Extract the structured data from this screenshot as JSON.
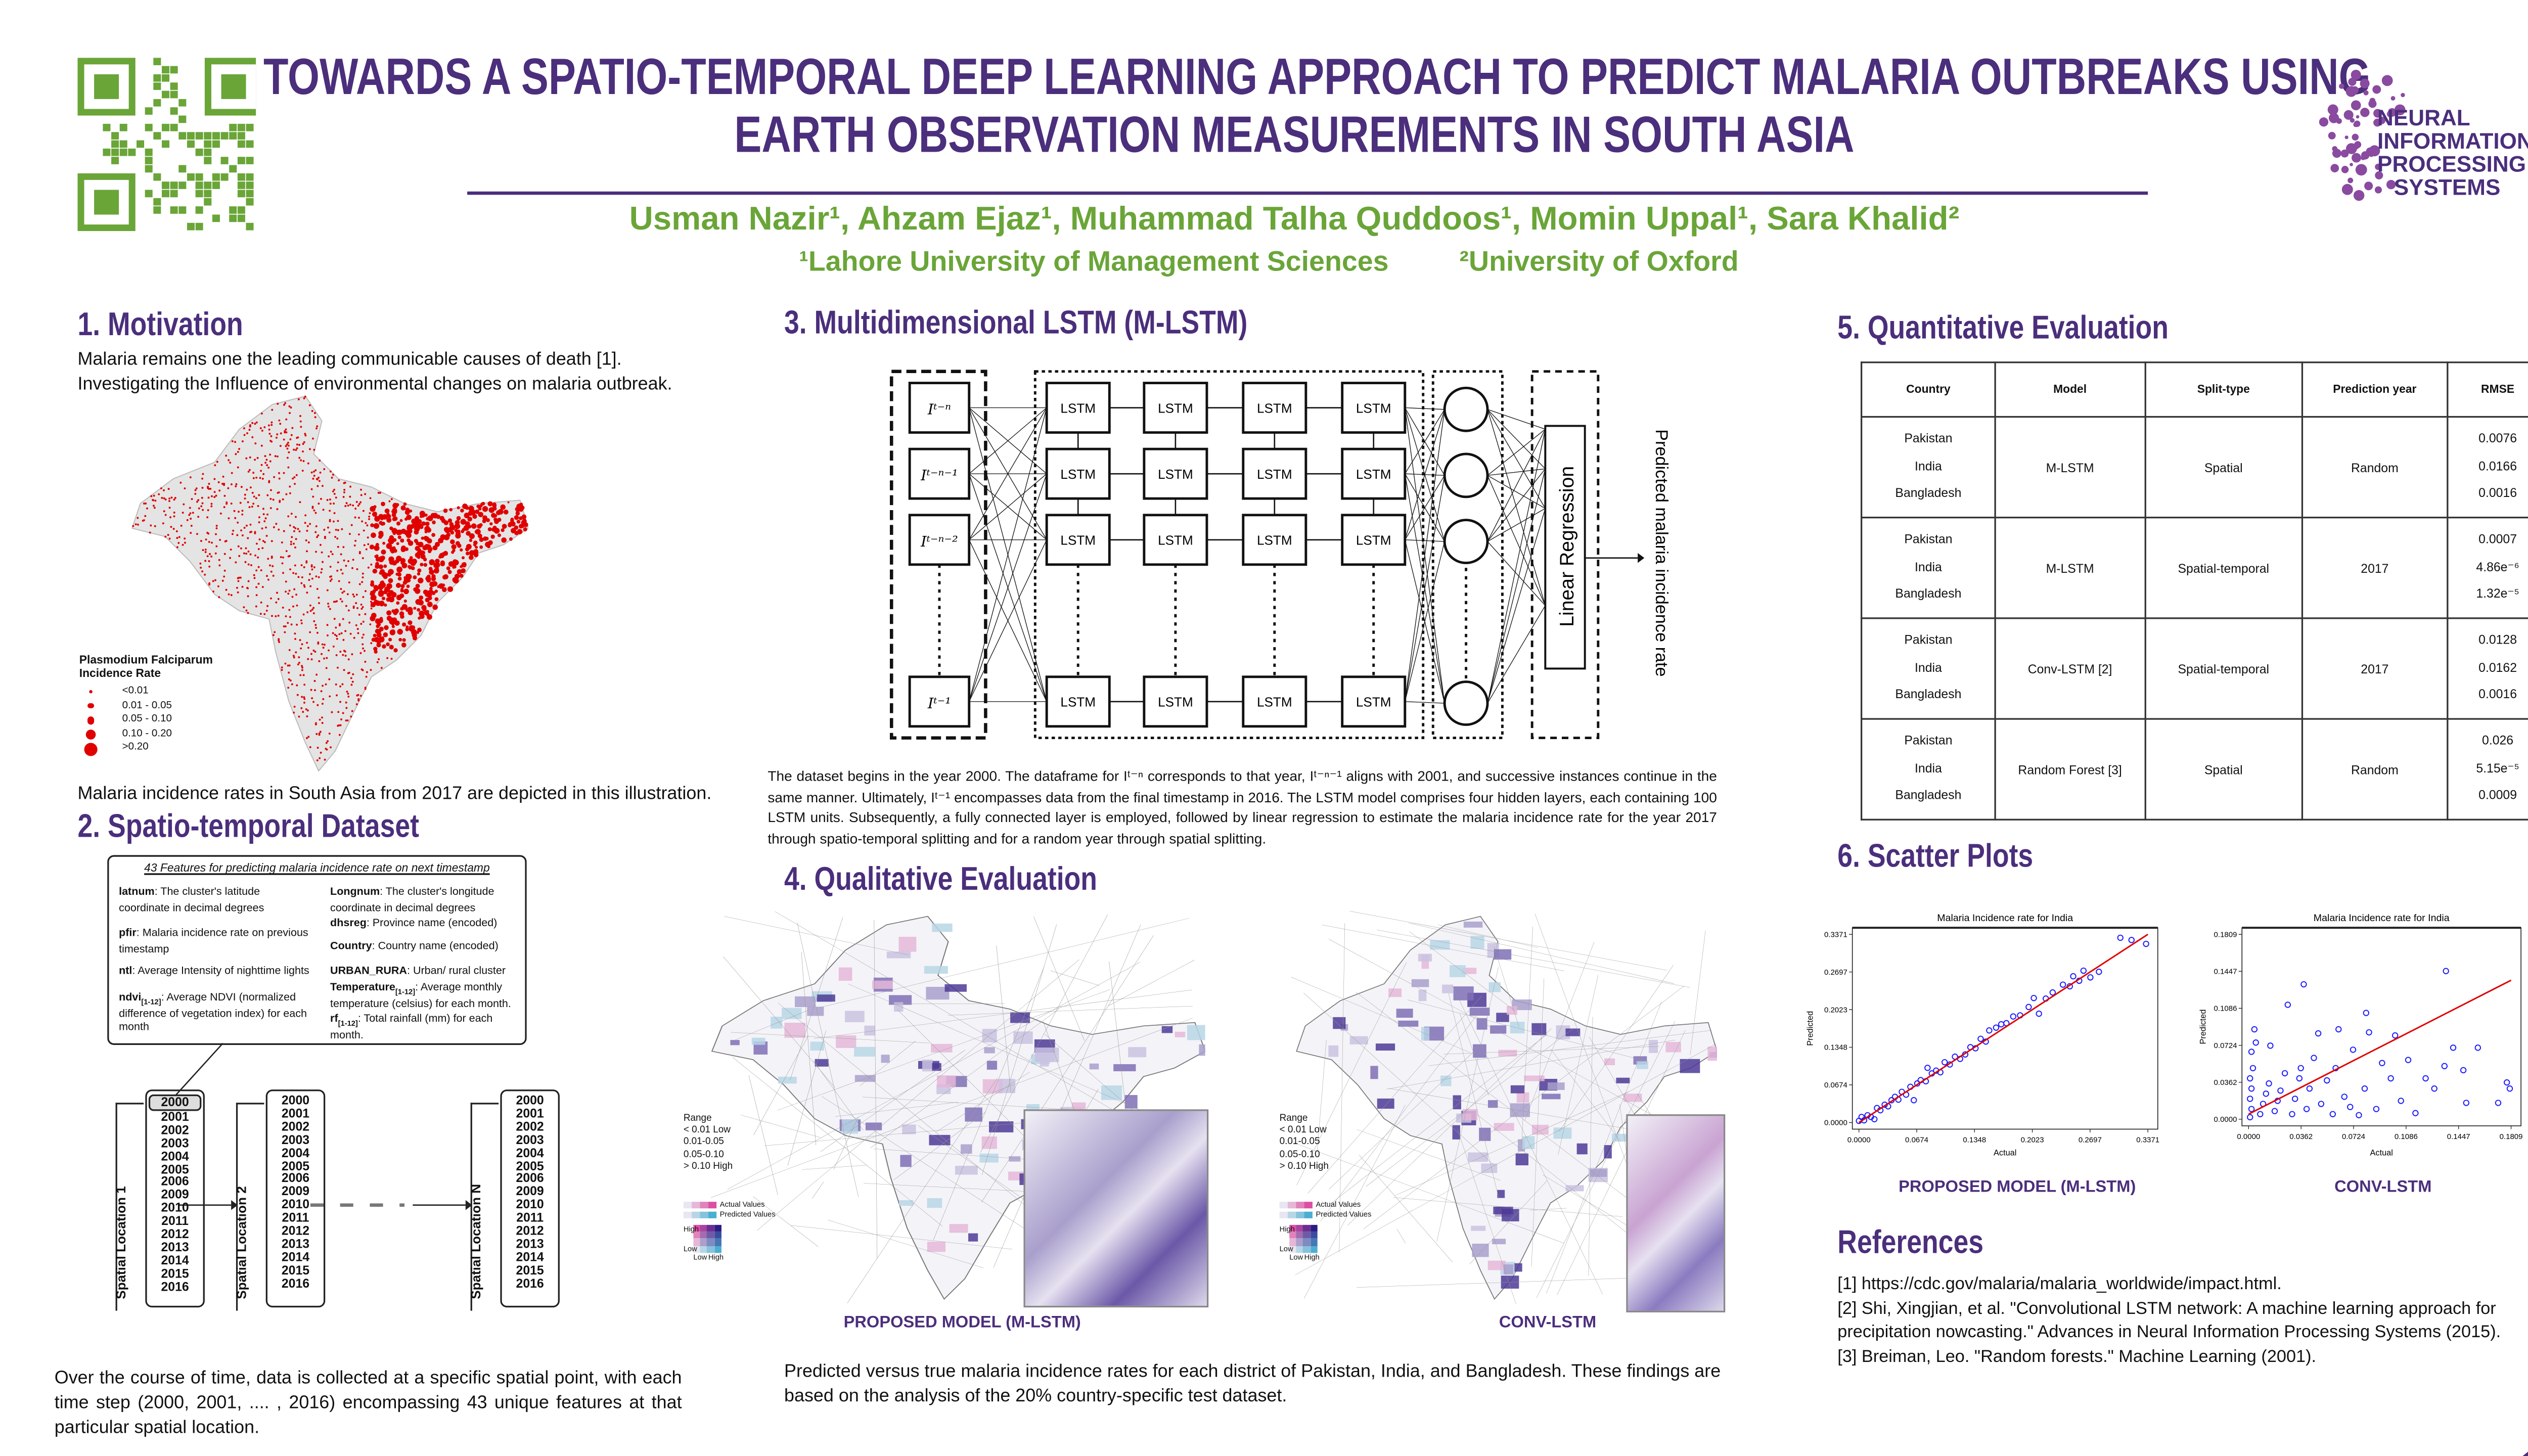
{
  "header": {
    "title_line1": "TOWARDS A SPATIO-TEMPORAL DEEP LEARNING APPROACH TO PREDICT MALARIA OUTBREAKS USING",
    "title_line2": "EARTH OBSERVATION MEASUREMENTS IN SOUTH ASIA",
    "authors": "Usman Nazir¹, Ahzam Ejaz¹, Muhammad Talha Quddoos¹, Momin Uppal¹, Sara Khalid²",
    "affiliation1": "¹Lahore University of Management Sciences",
    "affiliation2": "²University of Oxford",
    "logo_text": [
      "NEURAL",
      "INFORMATION",
      "PROCESSING",
      "SYSTEMS"
    ]
  },
  "colors": {
    "primary": "#4b2e7c",
    "accent": "#6aa538",
    "incidence": "#e00000"
  },
  "motivation": {
    "heading": "1. Motivation",
    "line1": "Malaria remains one the leading communicable causes of death [1].",
    "line2": "Investigating the Influence of environmental changes on malaria outbreak.",
    "legend_title1": "Plasmodium Falciparum",
    "legend_title2": "Incidence Rate",
    "legend_items": [
      "<0.01",
      "0.01 - 0.05",
      "0.05 - 0.10",
      "0.10 - 0.20",
      ">0.20"
    ],
    "caption": "Malaria incidence rates in South Asia from 2017 are depicted in this illustration."
  },
  "dataset": {
    "heading": "2. Spatio-temporal Dataset",
    "features_title": "43 Features for predicting malaria incidence rate on next timestamp",
    "features_left": [
      {
        "key": "latnum",
        "sub": "",
        "desc": ": The cluster's latitude coordinate in decimal degrees"
      },
      {
        "key": "pfir",
        "sub": "",
        "desc": ": Malaria incidence rate on previous timestamp"
      },
      {
        "key": "ntl",
        "sub": "",
        "desc": ": Average Intensity of nighttime lights"
      },
      {
        "key": "ndvi",
        "sub": "[1-12]",
        "desc": ": Average NDVI (normalized difference of vegetation index) for each month"
      }
    ],
    "features_right": [
      {
        "key": "Longnum",
        "sub": "",
        "desc": ": The cluster's longitude coordinate in decimal degrees"
      },
      {
        "key": "dhsreg",
        "sub": "",
        "desc": ": Province name (encoded)"
      },
      {
        "key": "Country",
        "sub": "",
        "desc": ": Country name (encoded)"
      },
      {
        "key": "URBAN_RURA",
        "sub": "",
        "desc": ": Urban/ rural cluster"
      },
      {
        "key": "Temperature",
        "sub": "[1-12]",
        "desc": ": Average monthly temperature (celsius) for each month."
      },
      {
        "key": "rf",
        "sub": "[1-12]",
        "desc": ": Total rainfall (mm) for each month."
      }
    ],
    "columns": [
      {
        "label": "Spatial Location 1",
        "years": [
          "2000",
          "2001",
          "2002",
          "2003",
          "2004",
          "2005",
          "2006",
          "2009",
          "2010",
          "2011",
          "2012",
          "2013",
          "2014",
          "2015",
          "2016"
        ]
      },
      {
        "label": "Spatial Location 2",
        "years": [
          "2000",
          "2001",
          "2002",
          "2003",
          "2004",
          "2005",
          "2006",
          "2009",
          "2010",
          "2011",
          "2012",
          "2013",
          "2014",
          "2015",
          "2016"
        ]
      },
      {
        "label": "Spatial Location N",
        "years": [
          "2000",
          "2001",
          "2002",
          "2003",
          "2004",
          "2005",
          "2006",
          "2009",
          "2010",
          "2011",
          "2012",
          "2013",
          "2014",
          "2015",
          "2016"
        ]
      }
    ],
    "paragraph": "Over the course of time, data is collected at a specific spatial point, with each time step (2000, 2001, .... , 2016) encompassing 43 unique features at that particular spatial location."
  },
  "mlstm": {
    "heading": "3. Multidimensional LSTM (M-LSTM)",
    "inputs": [
      "Iᵗ⁻ⁿ",
      "Iᵗ⁻ⁿ⁻¹",
      "Iᵗ⁻ⁿ⁻²",
      "Iᵗ⁻¹"
    ],
    "lstm_label": "LSTM",
    "linear_regression": "Linear Regression",
    "output_label": "Predicted malaria incidence rate",
    "paragraph": "The dataset begins in the year 2000. The dataframe for Iᵗ⁻ⁿ corresponds to that year, Iᵗ⁻ⁿ⁻¹ aligns with 2001, and successive instances continue in the same manner. Ultimately, Iᵗ⁻¹ encompasses data from the final timestamp in 2016. The LSTM model comprises four hidden layers, each containing 100 LSTM units. Subsequently, a fully connected layer is employed, followed by linear regression to estimate the malaria incidence rate for the year 2017 through spatio-temporal splitting and for a random year through spatial splitting."
  },
  "qualitative": {
    "heading": "4. Qualitative Evaluation",
    "range_title": "Range",
    "ranges": [
      "< 0.01  Low",
      "0.01-0.05",
      "0.05-0.10",
      "> 0.10  High"
    ],
    "actual_label": "Actual Values",
    "predicted_label": "Predicted Values",
    "high": "High",
    "low": "Low",
    "caption_left": "PROPOSED MODEL (M-LSTM)",
    "caption_right": "CONV-LSTM",
    "paragraph": "Predicted versus true malaria incidence rates for each district of Pakistan, India, and Bangladesh. These findings are based on the analysis of the 20% country-specific test dataset."
  },
  "quantitative": {
    "heading": "5. Quantitative Evaluation",
    "headers": [
      "Country",
      "Model",
      "Split-type",
      "Prediction year",
      "RMSE"
    ],
    "rows": [
      {
        "countries": [
          "Pakistan",
          "India",
          "Bangladesh"
        ],
        "model": "M-LSTM",
        "split": "Spatial",
        "year": "Random",
        "rmse": [
          "0.0076",
          "0.0166",
          "0.0016"
        ]
      },
      {
        "countries": [
          "Pakistan",
          "India",
          "Bangladesh"
        ],
        "model": "M-LSTM",
        "split": "Spatial-temporal",
        "year": "2017",
        "rmse": [
          "0.0007",
          "4.86e⁻⁶",
          "1.32e⁻⁵"
        ]
      },
      {
        "countries": [
          "Pakistan",
          "India",
          "Bangladesh"
        ],
        "model": "Conv-LSTM [2]",
        "split": "Spatial-temporal",
        "year": "2017",
        "rmse": [
          "0.0128",
          "0.0162",
          "0.0016"
        ]
      },
      {
        "countries": [
          "Pakistan",
          "India",
          "Bangladesh"
        ],
        "model": "Random Forest [3]",
        "split": "Spatial",
        "year": "Random",
        "rmse": [
          "0.026",
          "5.15e⁻⁵",
          "0.0009"
        ]
      }
    ]
  },
  "scatter": {
    "heading": "6. Scatter Plots",
    "caption_left": "PROPOSED MODEL (M-LSTM)",
    "caption_right": "CONV-LSTM"
  },
  "chart_data": [
    {
      "type": "scatter",
      "title": "Malaria Incidence rate for India",
      "xlabel": "Actual",
      "ylabel": "Predicted",
      "xlim": [
        0,
        0.3371
      ],
      "ylim": [
        0,
        0.3371
      ],
      "xticks": [
        "0.0000",
        "0.0674",
        "0.1348",
        "0.2023",
        "0.2697",
        "0.3371"
      ],
      "yticks": [
        "0.0000",
        "0.0674",
        "0.1348",
        "0.2023",
        "0.2697",
        "0.3371"
      ],
      "fit_line": [
        [
          0,
          0
        ],
        [
          0.3371,
          0.3371
        ]
      ],
      "points": [
        [
          0.0,
          0.003
        ],
        [
          0.003,
          0.01
        ],
        [
          0.006,
          0.004
        ],
        [
          0.01,
          0.013
        ],
        [
          0.014,
          0.01
        ],
        [
          0.018,
          0.006
        ],
        [
          0.021,
          0.026
        ],
        [
          0.025,
          0.022
        ],
        [
          0.03,
          0.032
        ],
        [
          0.034,
          0.029
        ],
        [
          0.038,
          0.04
        ],
        [
          0.042,
          0.046
        ],
        [
          0.046,
          0.041
        ],
        [
          0.05,
          0.055
        ],
        [
          0.055,
          0.05
        ],
        [
          0.06,
          0.064
        ],
        [
          0.064,
          0.04
        ],
        [
          0.068,
          0.07
        ],
        [
          0.072,
          0.076
        ],
        [
          0.078,
          0.074
        ],
        [
          0.08,
          0.098
        ],
        [
          0.085,
          0.088
        ],
        [
          0.09,
          0.093
        ],
        [
          0.095,
          0.09
        ],
        [
          0.1,
          0.108
        ],
        [
          0.106,
          0.104
        ],
        [
          0.112,
          0.118
        ],
        [
          0.118,
          0.114
        ],
        [
          0.124,
          0.122
        ],
        [
          0.13,
          0.135
        ],
        [
          0.136,
          0.133
        ],
        [
          0.142,
          0.15
        ],
        [
          0.148,
          0.145
        ],
        [
          0.152,
          0.165
        ],
        [
          0.16,
          0.17
        ],
        [
          0.166,
          0.176
        ],
        [
          0.172,
          0.178
        ],
        [
          0.18,
          0.19
        ],
        [
          0.188,
          0.192
        ],
        [
          0.198,
          0.207
        ],
        [
          0.204,
          0.223
        ],
        [
          0.21,
          0.195
        ],
        [
          0.218,
          0.222
        ],
        [
          0.226,
          0.233
        ],
        [
          0.238,
          0.247
        ],
        [
          0.246,
          0.244
        ],
        [
          0.25,
          0.262
        ],
        [
          0.257,
          0.254
        ],
        [
          0.262,
          0.272
        ],
        [
          0.27,
          0.26
        ],
        [
          0.28,
          0.27
        ],
        [
          0.305,
          0.331
        ],
        [
          0.318,
          0.327
        ],
        [
          0.335,
          0.32
        ]
      ]
    },
    {
      "type": "scatter",
      "title": "Malaria Incidence rate for India",
      "xlabel": "Actual",
      "ylabel": "Predicted",
      "xlim": [
        0,
        0.1809
      ],
      "ylim": [
        0,
        0.1809
      ],
      "xticks": [
        "0.0000",
        "0.0362",
        "0.0724",
        "0.1086",
        "0.1447",
        "0.1809"
      ],
      "yticks": [
        "0.0000",
        "0.0362",
        "0.0724",
        "0.1086",
        "0.1447",
        "0.1809"
      ],
      "fit_line": [
        [
          0,
          0.005
        ],
        [
          0.1809,
          0.136
        ]
      ],
      "points": [
        [
          0.001,
          0.002
        ],
        [
          0.002,
          0.01
        ],
        [
          0.001,
          0.02
        ],
        [
          0.002,
          0.03
        ],
        [
          0.001,
          0.04
        ],
        [
          0.003,
          0.05
        ],
        [
          0.002,
          0.066
        ],
        [
          0.005,
          0.075
        ],
        [
          0.004,
          0.088
        ],
        [
          0.008,
          0.005
        ],
        [
          0.01,
          0.015
        ],
        [
          0.012,
          0.025
        ],
        [
          0.014,
          0.035
        ],
        [
          0.015,
          0.072
        ],
        [
          0.018,
          0.008
        ],
        [
          0.02,
          0.018
        ],
        [
          0.022,
          0.028
        ],
        [
          0.025,
          0.045
        ],
        [
          0.027,
          0.112
        ],
        [
          0.03,
          0.005
        ],
        [
          0.032,
          0.02
        ],
        [
          0.035,
          0.04
        ],
        [
          0.036,
          0.05
        ],
        [
          0.038,
          0.132
        ],
        [
          0.04,
          0.01
        ],
        [
          0.042,
          0.03
        ],
        [
          0.045,
          0.06
        ],
        [
          0.048,
          0.084
        ],
        [
          0.05,
          0.015
        ],
        [
          0.054,
          0.038
        ],
        [
          0.058,
          0.005
        ],
        [
          0.06,
          0.05
        ],
        [
          0.062,
          0.088
        ],
        [
          0.066,
          0.022
        ],
        [
          0.07,
          0.012
        ],
        [
          0.072,
          0.068
        ],
        [
          0.076,
          0.004
        ],
        [
          0.08,
          0.03
        ],
        [
          0.081,
          0.104
        ],
        [
          0.083,
          0.085
        ],
        [
          0.088,
          0.01
        ],
        [
          0.092,
          0.055
        ],
        [
          0.098,
          0.04
        ],
        [
          0.101,
          0.082
        ],
        [
          0.105,
          0.018
        ],
        [
          0.11,
          0.058
        ],
        [
          0.115,
          0.006
        ],
        [
          0.122,
          0.04
        ],
        [
          0.128,
          0.03
        ],
        [
          0.135,
          0.052
        ],
        [
          0.136,
          0.145
        ],
        [
          0.141,
          0.07
        ],
        [
          0.148,
          0.048
        ],
        [
          0.15,
          0.016
        ],
        [
          0.158,
          0.07
        ],
        [
          0.172,
          0.016
        ],
        [
          0.178,
          0.036
        ],
        [
          0.18,
          0.03
        ]
      ]
    }
  ],
  "references": {
    "heading": "References",
    "items": [
      "[1] https://cdc.gov/malaria/malaria_worldwide/impact.html.",
      "[2] Shi, Xingjian, et al. \"Convolutional LSTM network: A machine learning approach for precipitation nowcasting.\" Advances in Neural Information Processing Systems (2015).",
      "[3] Breiman, Leo. \"Random forests.\" Machine Learning (2001)."
    ]
  }
}
